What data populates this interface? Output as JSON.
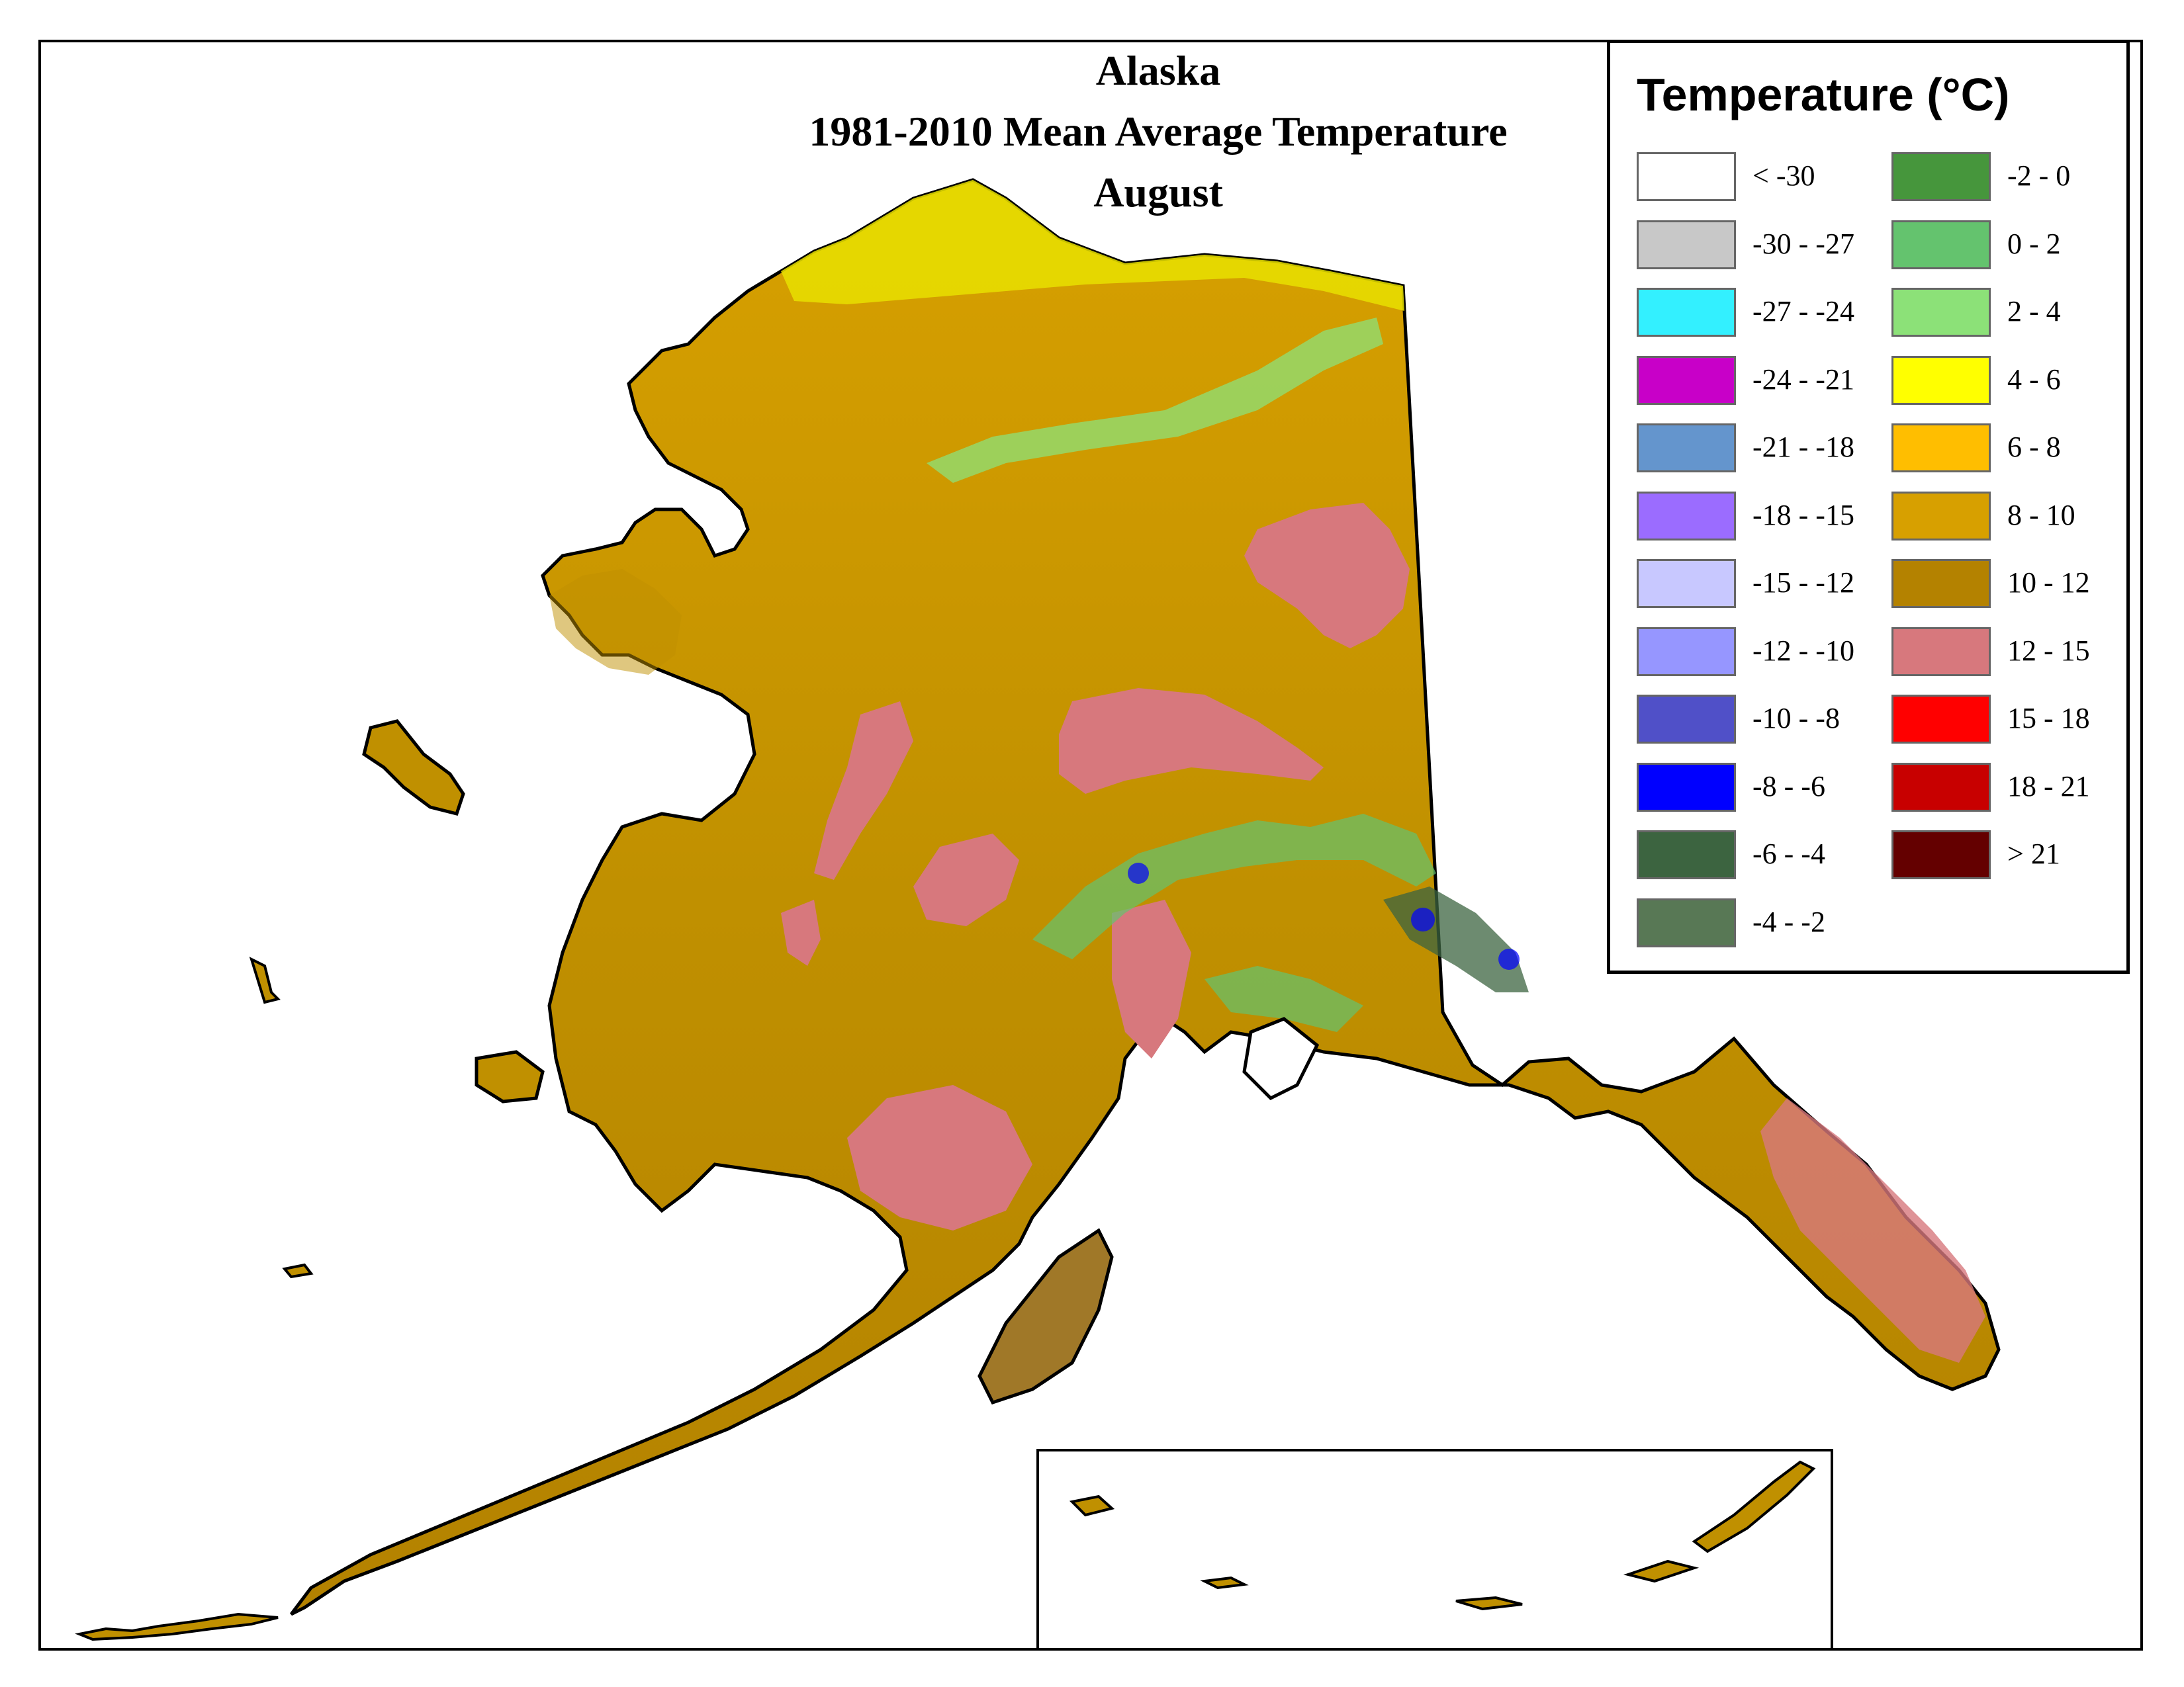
{
  "map": {
    "title_line1": "Alaska",
    "title_line2": "1981-2010 Mean Average Temperature",
    "title_line3": "August"
  },
  "legend": {
    "title": "Temperature (°C)",
    "items": [
      {
        "label": "< -30",
        "color": "#ffffff"
      },
      {
        "label": "-30 - -27",
        "color": "#c8c8c8"
      },
      {
        "label": "-27 - -24",
        "color": "#33f0ff"
      },
      {
        "label": "-24 - -21",
        "color": "#c800c8"
      },
      {
        "label": "-21 - -18",
        "color": "#6495cd"
      },
      {
        "label": "-18 - -15",
        "color": "#9b6cff"
      },
      {
        "label": "-15 - -12",
        "color": "#c8c8ff"
      },
      {
        "label": "-12 - -10",
        "color": "#9696ff"
      },
      {
        "label": "-10 - -8",
        "color": "#5050c8"
      },
      {
        "label": "-8 - -6",
        "color": "#0000ff"
      },
      {
        "label": "-6 - -4",
        "color": "#3c6440"
      },
      {
        "label": "-4 - -2",
        "color": "#587855"
      },
      {
        "label": "-2 - 0",
        "color": "#46963c"
      },
      {
        "label": "0 - 2",
        "color": "#64c36e"
      },
      {
        "label": "2 - 4",
        "color": "#8ce178"
      },
      {
        "label": "4 - 6",
        "color": "#ffff00"
      },
      {
        "label": "6 - 8",
        "color": "#ffbe00"
      },
      {
        "label": "8 - 10",
        "color": "#d7a000"
      },
      {
        "label": "10 - 12",
        "color": "#b48200"
      },
      {
        "label": "12 - 15",
        "color": "#d7787d"
      },
      {
        "label": "15 - 18",
        "color": "#ff0000"
      },
      {
        "label": "18 - 21",
        "color": "#c80000"
      },
      {
        "label": "> 21",
        "color": "#640000"
      }
    ]
  }
}
